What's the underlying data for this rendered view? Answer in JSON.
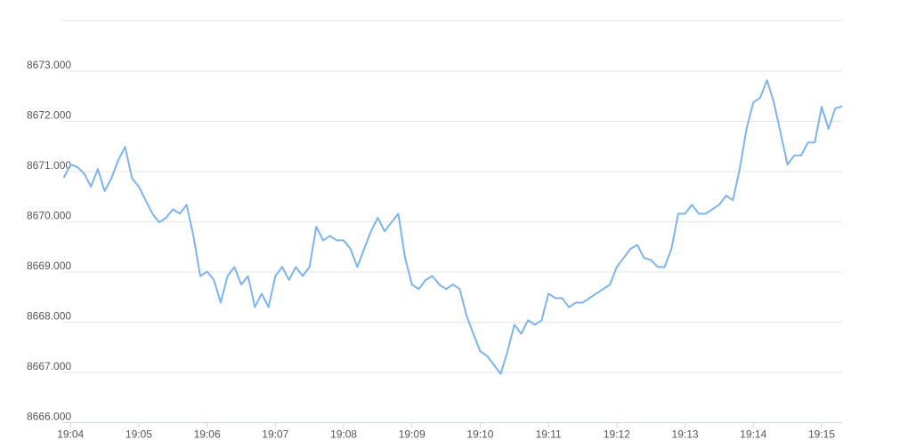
{
  "chart_data": {
    "type": "line",
    "x": [
      1143.9,
      1144,
      1144.1,
      1144.2,
      1144.3,
      1144.4,
      1144.5,
      1144.6,
      1144.7,
      1144.8,
      1144.9,
      1145,
      1145.1,
      1145.2,
      1145.3,
      1145.4,
      1145.5,
      1145.6,
      1145.7,
      1145.8,
      1145.9,
      1146,
      1146.1,
      1146.2,
      1146.3,
      1146.4,
      1146.5,
      1146.6,
      1146.7,
      1146.8,
      1146.9,
      1147,
      1147.1,
      1147.2,
      1147.3,
      1147.4,
      1147.5,
      1147.6,
      1147.7,
      1147.8,
      1147.9,
      1148,
      1148.1,
      1148.2,
      1148.3,
      1148.4,
      1148.5,
      1148.6,
      1148.7,
      1148.8,
      1148.9,
      1149,
      1149.1,
      1149.2,
      1149.3,
      1149.4,
      1149.5,
      1149.6,
      1149.7,
      1149.8,
      1149.9,
      1150,
      1150.1,
      1150.2,
      1150.3,
      1150.4,
      1150.5,
      1150.6,
      1150.7,
      1150.8,
      1150.9,
      1151,
      1151.1,
      1151.2,
      1151.3,
      1151.4,
      1151.5,
      1151.6,
      1151.7,
      1151.8,
      1151.9,
      1152,
      1152.1,
      1152.2,
      1152.3,
      1152.4,
      1152.5,
      1152.6,
      1152.7,
      1152.8,
      1152.9,
      1153,
      1153.1,
      1153.2,
      1153.3,
      1153.4,
      1153.5,
      1153.6,
      1153.7,
      1153.8,
      1153.9,
      1154,
      1154.1,
      1154.2,
      1154.3,
      1154.4,
      1154.5,
      1154.6,
      1154.7,
      1154.8,
      1154.9,
      1155,
      1155.1,
      1155.2,
      1155.3
    ],
    "series": [
      {
        "color": "#7cb5ec",
        "values": [
          8670.87,
          8671.14,
          8671.09,
          8670.96,
          8670.7,
          8671.05,
          8670.61,
          8670.87,
          8671.23,
          8671.49,
          8670.87,
          8670.7,
          8670.43,
          8670.16,
          8669.99,
          8670.08,
          8670.25,
          8670.16,
          8670.34,
          8669.72,
          8668.92,
          8669.01,
          8668.84,
          8668.39,
          8668.92,
          8669.1,
          8668.75,
          8668.92,
          8668.3,
          8668.57,
          8668.3,
          8668.92,
          8669.1,
          8668.84,
          8669.1,
          8668.92,
          8669.1,
          8669.9,
          8669.63,
          8669.72,
          8669.63,
          8669.63,
          8669.46,
          8669.1,
          8669.46,
          8669.81,
          8670.08,
          8669.81,
          8669.99,
          8670.16,
          8669.28,
          8668.75,
          8668.66,
          8668.84,
          8668.92,
          8668.75,
          8668.66,
          8668.75,
          8668.66,
          8668.13,
          8667.77,
          8667.42,
          8667.33,
          8667.15,
          8666.97,
          8667.42,
          8667.95,
          8667.77,
          8668.04,
          8667.95,
          8668.04,
          8668.57,
          8668.48,
          8668.48,
          8668.3,
          8668.39,
          8668.39,
          8668.48,
          8668.57,
          8668.66,
          8668.75,
          8669.1,
          8669.28,
          8669.46,
          8669.54,
          8669.28,
          8669.24,
          8669.1,
          8669.1,
          8669.46,
          8670.16,
          8670.16,
          8670.34,
          8670.16,
          8670.16,
          8670.25,
          8670.34,
          8670.52,
          8670.43,
          8671.05,
          8671.85,
          8672.38,
          8672.47,
          8672.82,
          8672.38,
          8671.76,
          8671.14,
          8671.32,
          8671.32,
          8671.58,
          8671.58,
          8672.29,
          8671.85,
          8672.26,
          8672.3
        ]
      }
    ],
    "xlim": [
      1143.88,
      1155.3
    ],
    "xticks": [
      {
        "value": 1144,
        "label": "19:04"
      },
      {
        "value": 1145,
        "label": "19:05"
      },
      {
        "value": 1146,
        "label": "19:06"
      },
      {
        "value": 1147,
        "label": "19:07"
      },
      {
        "value": 1148,
        "label": "19:08"
      },
      {
        "value": 1149,
        "label": "19:09"
      },
      {
        "value": 1150,
        "label": "19:10"
      },
      {
        "value": 1151,
        "label": "19:11"
      },
      {
        "value": 1152,
        "label": "19:12"
      },
      {
        "value": 1153,
        "label": "19:13"
      },
      {
        "value": 1154,
        "label": "19:14"
      },
      {
        "value": 1155,
        "label": "19:15"
      }
    ],
    "ylim": [
      8666,
      8674
    ],
    "yticks": [
      {
        "value": 8666,
        "label": "8666.000"
      },
      {
        "value": 8667,
        "label": "8667.000"
      },
      {
        "value": 8668,
        "label": "8668.000"
      },
      {
        "value": 8669,
        "label": "8669.000"
      },
      {
        "value": 8670,
        "label": "8670.000"
      },
      {
        "value": 8671,
        "label": "8671.000"
      },
      {
        "value": 8672,
        "label": "8672.000"
      },
      {
        "value": 8673,
        "label": "8673.000"
      }
    ],
    "grid": true
  }
}
